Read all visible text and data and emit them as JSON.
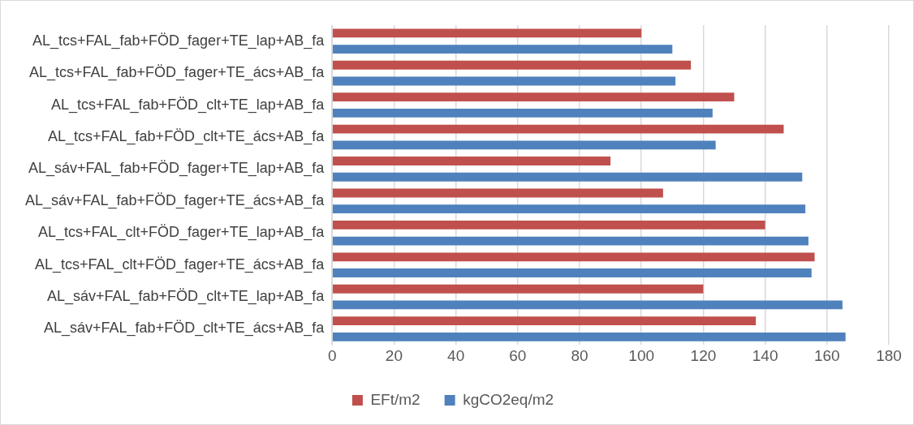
{
  "chart_data": {
    "type": "bar",
    "orientation": "horizontal",
    "categories": [
      "AL_tcs+FAL_fab+FÖD_fager+TE_lap+AB_fa",
      "AL_tcs+FAL_fab+FÖD_fager+TE_ács+AB_fa",
      "AL_tcs+FAL_fab+FÖD_clt+TE_lap+AB_fa",
      "AL_tcs+FAL_fab+FÖD_clt+TE_ács+AB_fa",
      "AL_sáv+FAL_fab+FÖD_fager+TE_lap+AB_fa",
      "AL_sáv+FAL_fab+FÖD_fager+TE_ács+AB_fa",
      "AL_tcs+FAL_clt+FÖD_fager+TE_lap+AB_fa",
      "AL_tcs+FAL_clt+FÖD_fager+TE_ács+AB_fa",
      "AL_sáv+FAL_fab+FÖD_clt+TE_lap+AB_fa",
      "AL_sáv+FAL_fab+FÖD_clt+TE_ács+AB_fa"
    ],
    "series": [
      {
        "name": "EFt/m2",
        "color": "#c0504d",
        "values": [
          100,
          116,
          130,
          146,
          90,
          107,
          140,
          156,
          120,
          137
        ]
      },
      {
        "name": "kgCO2eq/m2",
        "color": "#4f81bd",
        "values": [
          110,
          111,
          123,
          124,
          152,
          153,
          154,
          155,
          165,
          166
        ]
      }
    ],
    "xlim": [
      0,
      180
    ],
    "xticks": [
      0,
      20,
      40,
      60,
      80,
      100,
      120,
      140,
      160,
      180
    ],
    "grid": "x",
    "legend": "bottom"
  }
}
